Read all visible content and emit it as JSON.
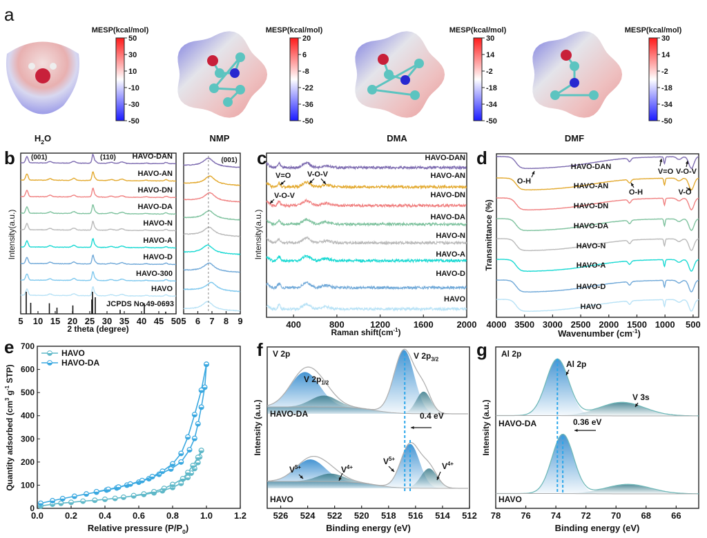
{
  "panel_labels": [
    "a",
    "b",
    "c",
    "d",
    "e",
    "f",
    "g"
  ],
  "colors": {
    "HAVO-DAN": "#7d6bb0",
    "HAVO-AN": "#e3a92e",
    "HAVO-DN": "#f08080",
    "HAVO-DA": "#7ec29e",
    "HAVO-N": "#b9b9b9",
    "HAVO-A": "#19d9d3",
    "HAVO-D": "#6fa8d8",
    "HAVO-300": "#7ec8ee",
    "HAVO": "#b8e2f6",
    "bet_havo": "#5fb8c8",
    "bet_havoda": "#3aa8e0",
    "xps_fill": "#3b8fd0",
    "xps_fill2": "#3f8a9a",
    "dashed": "#2aa6ea"
  },
  "chart_data": [
    {
      "panel": "a",
      "type": "heatmap",
      "title": "Molecular electrostatic potential maps",
      "molecules": [
        {
          "name": "H2O",
          "label_main": "H",
          "label_sub": "2",
          "label_tail": "O",
          "colorbar_title": "MESP(kcal/mol)",
          "ticks": [
            50,
            30,
            10,
            -10,
            -30,
            -50
          ],
          "range": [
            -50,
            50
          ]
        },
        {
          "name": "NMP",
          "label_main": "NMP",
          "colorbar_title": "MESP(kcal/mol)",
          "ticks": [
            20,
            6,
            -8,
            -22,
            -36,
            -50
          ],
          "range": [
            -50,
            20
          ]
        },
        {
          "name": "DMA",
          "label_main": "DMA",
          "colorbar_title": "MESP(kcal/mol)",
          "ticks": [
            30,
            14,
            -2,
            -18,
            -34,
            -50
          ],
          "range": [
            -50,
            30
          ]
        },
        {
          "name": "DMF",
          "label_main": "DMF",
          "colorbar_title": "MESP(kcal/mol)",
          "ticks": [
            30,
            14,
            -2,
            -18,
            -34,
            -50
          ],
          "range": [
            -50,
            30
          ]
        }
      ]
    },
    {
      "panel": "b",
      "type": "line",
      "xlabel": "2 theta (degree)",
      "ylabel": "Intensity(a.u.)",
      "xlim": [
        5,
        50
      ],
      "xticks": [
        5,
        10,
        15,
        20,
        25,
        30,
        35,
        40,
        45,
        50
      ],
      "annotations": [
        "(001)",
        "(110)"
      ],
      "series": [
        "HAVO-DAN",
        "HAVO-AN",
        "HAVO-DN",
        "HAVO-DA",
        "HAVO-N",
        "HAVO-A",
        "HAVO-D",
        "HAVO-300",
        "HAVO"
      ],
      "peaks_deg": [
        6.8,
        13.5,
        20.4,
        25.9,
        31.2,
        34.3,
        41.3,
        47.1
      ],
      "reference": {
        "label": "JCPDS No.49-0693",
        "lines": [
          [
            6.6,
            1.0
          ],
          [
            7.9,
            0.5
          ],
          [
            13.3,
            0.48
          ],
          [
            15.5,
            0.28
          ],
          [
            20.1,
            0.38
          ],
          [
            25.6,
            0.65
          ],
          [
            25.8,
            1.0
          ],
          [
            26.6,
            0.75
          ],
          [
            33.8,
            0.18
          ],
          [
            40.8,
            0.48
          ],
          [
            47.0,
            0.1
          ]
        ]
      },
      "inset": {
        "xlim": [
          5,
          9
        ],
        "xticks": [
          5,
          6,
          7,
          8,
          9
        ],
        "annotation": "(001)",
        "dashed_x": 6.75,
        "peak_positions": [
          6.75,
          6.85,
          6.85,
          6.8,
          6.8,
          6.7,
          6.8,
          6.95,
          6.7
        ]
      }
    },
    {
      "panel": "c",
      "type": "line",
      "xlabel": "Raman shift(cm-1)",
      "ylabel": "Intensity(a.u.)",
      "xlim": [
        150,
        2000
      ],
      "xticks": [
        400,
        800,
        1200,
        1600,
        2000
      ],
      "series": [
        "HAVO-DAN",
        "HAVO-AN",
        "HAVO-DN",
        "HAVO-DA",
        "HAVO-N",
        "HAVO-A",
        "HAVO-D",
        "HAVO"
      ],
      "peaks": [
        265,
        520,
        700
      ],
      "annotations": [
        "V=O",
        "V-O-V",
        "V-O-V"
      ]
    },
    {
      "panel": "d",
      "type": "line",
      "xlabel": "Wavenumber (cm-1)",
      "ylabel": "Transmittance (%)",
      "xlim": [
        4000,
        400
      ],
      "xticks": [
        4000,
        3500,
        3000,
        2500,
        2000,
        1500,
        1000,
        500
      ],
      "series": [
        "HAVO-DAN",
        "HAVO-AN",
        "HAVO-DN",
        "HAVO-DA",
        "HAVO-N",
        "HAVO-A",
        "HAVO-D",
        "HAVO"
      ],
      "annotations": [
        "O-H",
        "O-H",
        "V=O",
        "V-O-V",
        "V-O"
      ]
    },
    {
      "panel": "e",
      "type": "scatter",
      "xlabel": "Relative pressure (P/P0)",
      "ylabel": "Quantity adsorbed (cm3 g-1 STP)",
      "xlim": [
        0.0,
        1.2
      ],
      "ylim": [
        0,
        700
      ],
      "xticks": [
        0.0,
        0.2,
        0.4,
        0.6,
        0.8,
        1.0,
        1.2
      ],
      "yticks": [
        0,
        100,
        200,
        300,
        400,
        500,
        600,
        700
      ],
      "legend": "top-left",
      "series": [
        {
          "name": "HAVO",
          "adsorption": [
            [
              0.02,
              10
            ],
            [
              0.09,
              18
            ],
            [
              0.14,
              22
            ],
            [
              0.2,
              26
            ],
            [
              0.27,
              31
            ],
            [
              0.34,
              35
            ],
            [
              0.4,
              39
            ],
            [
              0.46,
              43
            ],
            [
              0.51,
              48
            ],
            [
              0.57,
              54
            ],
            [
              0.63,
              60
            ],
            [
              0.69,
              67
            ],
            [
              0.74,
              76
            ],
            [
              0.8,
              90
            ],
            [
              0.85,
              108
            ],
            [
              0.89,
              133
            ],
            [
              0.91,
              152
            ],
            [
              0.93,
              172
            ],
            [
              0.95,
              198
            ],
            [
              0.96,
              222
            ],
            [
              0.97,
              250
            ]
          ],
          "desorption": [
            [
              0.97,
              250
            ],
            [
              0.95,
              220
            ],
            [
              0.92,
              185
            ],
            [
              0.89,
              155
            ],
            [
              0.86,
              128
            ],
            [
              0.8,
              103
            ],
            [
              0.75,
              86
            ],
            [
              0.69,
              72
            ],
            [
              0.63,
              62
            ],
            [
              0.57,
              55
            ]
          ]
        },
        {
          "name": "HAVO-DA",
          "adsorption": [
            [
              0.02,
              22
            ],
            [
              0.09,
              33
            ],
            [
              0.15,
              42
            ],
            [
              0.22,
              52
            ],
            [
              0.29,
              62
            ],
            [
              0.35,
              70
            ],
            [
              0.41,
              79
            ],
            [
              0.47,
              88
            ],
            [
              0.53,
              100
            ],
            [
              0.6,
              113
            ],
            [
              0.66,
              128
            ],
            [
              0.72,
              147
            ],
            [
              0.79,
              170
            ],
            [
              0.85,
              200
            ],
            [
              0.9,
              253
            ],
            [
              0.93,
              302
            ],
            [
              0.95,
              365
            ],
            [
              0.97,
              437
            ],
            [
              0.99,
              523
            ],
            [
              1.0,
              622
            ]
          ],
          "desorption": [
            [
              1.0,
              622
            ],
            [
              0.97,
              510
            ],
            [
              0.93,
              405
            ],
            [
              0.89,
              308
            ],
            [
              0.85,
              237
            ],
            [
              0.8,
              192
            ],
            [
              0.74,
              160
            ],
            [
              0.68,
              137
            ],
            [
              0.62,
              120
            ],
            [
              0.55,
              105
            ],
            [
              0.48,
              92
            ],
            [
              0.42,
              82
            ],
            [
              0.35,
              72
            ]
          ]
        }
      ]
    },
    {
      "panel": "f",
      "type": "area",
      "title_inside": "V 2p",
      "xlabel": "Binding energy (eV)",
      "ylabel": "Intensity (a.u.)",
      "xlim": [
        527,
        512
      ],
      "xticks": [
        526,
        524,
        522,
        520,
        518,
        516,
        514,
        512
      ],
      "samples": [
        "HAVO-DA",
        "HAVO"
      ],
      "peak_labels": {
        "p12": "V 2p1/2",
        "p32": "V 2p3/2",
        "v5": "V5+",
        "v4": "V4+"
      },
      "shift_label": "0.4 eV",
      "dashed_x": [
        516.8,
        516.4
      ],
      "components": {
        "HAVO-DA": [
          {
            "center": 524.2,
            "height": 0.55,
            "width": 1.1,
            "state": "V5+"
          },
          {
            "center": 522.8,
            "height": 0.18,
            "width": 1.0,
            "state": "V4+"
          },
          {
            "center": 516.85,
            "height": 1.0,
            "width": 0.75,
            "state": "V5+"
          },
          {
            "center": 515.4,
            "height": 0.35,
            "width": 0.55,
            "state": "V4+"
          }
        ],
        "HAVO": [
          {
            "center": 523.8,
            "height": 0.5,
            "width": 1.1,
            "state": "V5+"
          },
          {
            "center": 522.3,
            "height": 0.18,
            "width": 1.0,
            "state": "V4+"
          },
          {
            "center": 516.4,
            "height": 1.0,
            "width": 0.7,
            "state": "V5+"
          },
          {
            "center": 515.0,
            "height": 0.45,
            "width": 0.6,
            "state": "V4+"
          }
        ]
      }
    },
    {
      "panel": "g",
      "type": "area",
      "title_inside": "Al 2p",
      "xlabel": "Binding energy (eV)",
      "ylabel": "Intensity (a.u.)",
      "xlim": [
        78,
        64.5
      ],
      "xticks": [
        78,
        76,
        74,
        72,
        70,
        68,
        66
      ],
      "samples": [
        "HAVO-DA",
        "HAVO"
      ],
      "peak_labels": {
        "al": "Al 2p",
        "v3s": "V 3s"
      },
      "shift_label": "0.36 eV",
      "dashed_x": [
        73.9,
        73.54
      ],
      "components": {
        "HAVO-DA": [
          {
            "center": 73.9,
            "height": 1.0,
            "width": 0.75,
            "state": "Al 2p"
          },
          {
            "center": 69.6,
            "height": 0.24,
            "width": 1.5,
            "state": "V 3s"
          }
        ],
        "HAVO": [
          {
            "center": 73.54,
            "height": 1.0,
            "width": 0.72,
            "state": "Al 2p"
          },
          {
            "center": 69.2,
            "height": 0.16,
            "width": 1.5,
            "state": "V 3s"
          }
        ]
      }
    }
  ]
}
